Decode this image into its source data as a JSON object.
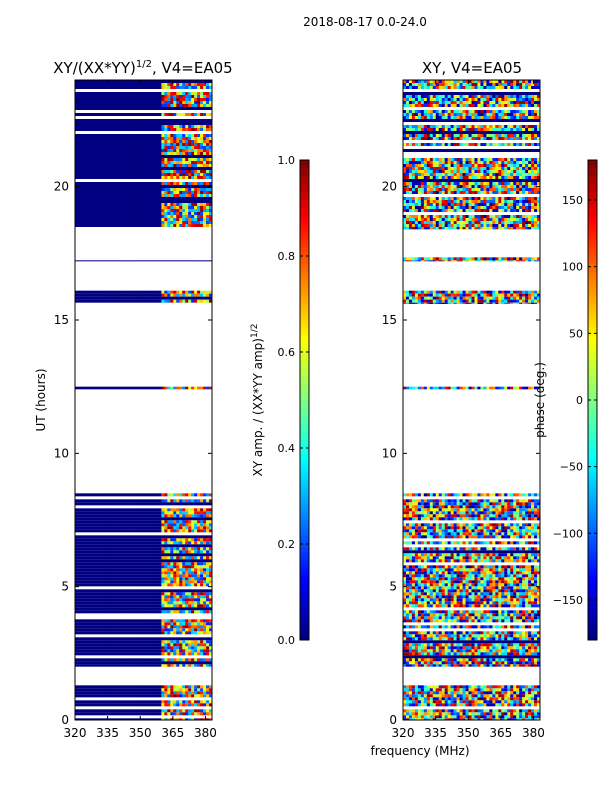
{
  "suptitle": "2018-08-17 0.0-24.0",
  "shared_xlabel": "frequency (MHz)",
  "colors": {
    "background": "#ffffff",
    "flag_blue": "#000080",
    "axis": "#000000"
  },
  "colormap": "jet",
  "chart_data": [
    {
      "type": "heatmap",
      "title_base": "XY/(XX*YY)",
      "title_exp": "1/2",
      "title_tail": ", V4=EA05",
      "xlabel": "",
      "ylabel": "UT (hours)",
      "xlim": [
        320,
        383
      ],
      "ylim": [
        0,
        24
      ],
      "xticks": [
        320,
        335,
        350,
        365,
        380
      ],
      "yticks": [
        0,
        5,
        10,
        15,
        20
      ],
      "value_range": [
        0,
        1
      ],
      "data_bands_ut": [
        [
          0.0,
          1.3
        ],
        [
          2.0,
          8.5
        ],
        [
          12.4,
          12.5
        ],
        [
          15.6,
          16.1
        ],
        [
          17.2,
          17.35
        ],
        [
          18.4,
          24.0
        ]
      ],
      "colorbar": {
        "label_base": "XY amp. / (XX*YY amp)",
        "label_exp": "1/2",
        "range": [
          0,
          1
        ],
        "ticks": [
          0.0,
          0.2,
          0.4,
          0.6,
          0.8,
          1.0
        ],
        "tick_labels": [
          "0.0",
          "0.2",
          "0.4",
          "0.6",
          "0.8",
          "1.0"
        ]
      }
    },
    {
      "type": "heatmap",
      "title": "XY, V4=EA05",
      "xlabel": "",
      "ylabel": "",
      "xlim": [
        320,
        383
      ],
      "ylim": [
        0,
        24
      ],
      "xticks": [
        320,
        335,
        350,
        365,
        380
      ],
      "yticks": [
        0,
        5,
        10,
        15,
        20
      ],
      "value_range": [
        -180,
        180
      ],
      "data_bands_ut": [
        [
          0.0,
          1.3
        ],
        [
          2.0,
          8.5
        ],
        [
          12.4,
          12.5
        ],
        [
          15.6,
          16.1
        ],
        [
          17.2,
          17.35
        ],
        [
          18.4,
          24.0
        ]
      ],
      "colorbar": {
        "label": "phase (deg.)",
        "range": [
          -180,
          180
        ],
        "ticks": [
          -150,
          -100,
          -50,
          0,
          50,
          100,
          150
        ],
        "tick_labels": [
          "−150",
          "−100",
          "−50",
          "0",
          "50",
          "100",
          "150"
        ]
      }
    }
  ]
}
